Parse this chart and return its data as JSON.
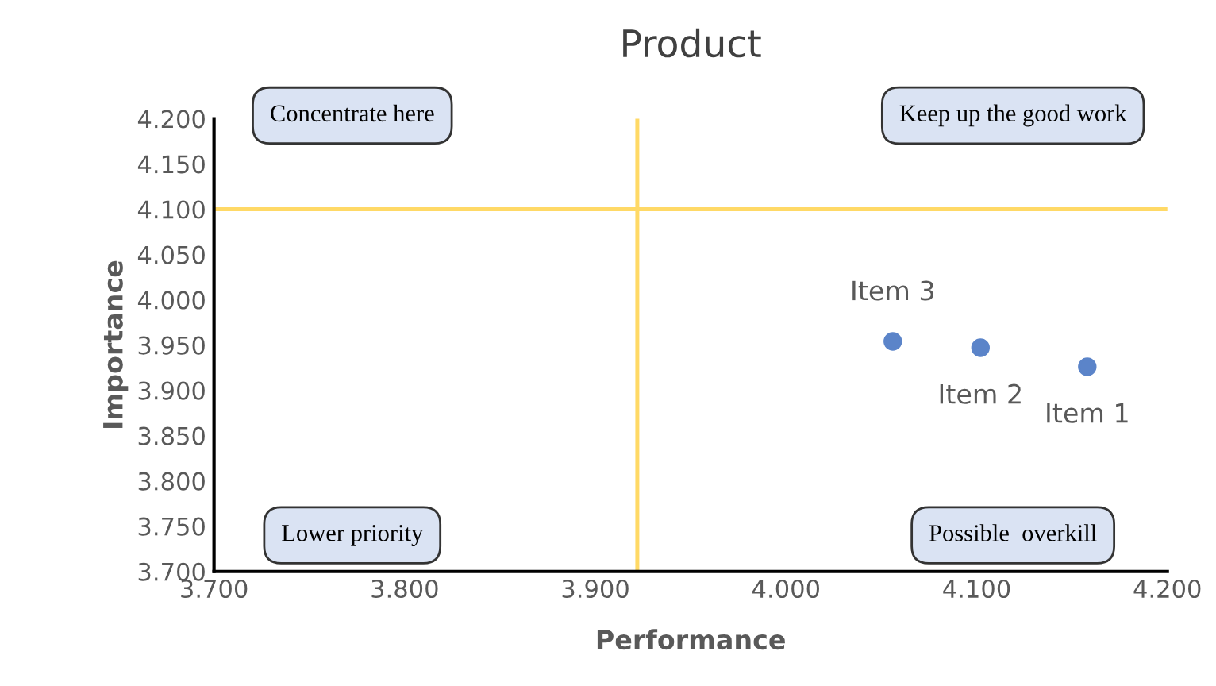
{
  "chart_data": {
    "type": "scatter",
    "title": "Product",
    "xlabel": "Performance",
    "ylabel": "Importance",
    "x": [
      4.158,
      4.102,
      4.056
    ],
    "values": [
      3.926,
      3.947,
      3.954
    ],
    "color": "#5b84c9",
    "marker": "circle",
    "xlim": [
      3.7,
      4.2
    ],
    "ylim": [
      3.7,
      4.2
    ],
    "xticks": [
      {
        "value": 3.7,
        "label": "3.700"
      },
      {
        "value": 3.8,
        "label": "3.800"
      },
      {
        "value": 3.9,
        "label": "3.900"
      },
      {
        "value": 4.0,
        "label": "4.000"
      },
      {
        "value": 4.1,
        "label": "4.100"
      },
      {
        "value": 4.2,
        "label": "4.200"
      }
    ],
    "yticks": [
      {
        "value": 3.7,
        "label": "3.700"
      },
      {
        "value": 3.75,
        "label": "3.750"
      },
      {
        "value": 3.8,
        "label": "3.800"
      },
      {
        "value": 3.85,
        "label": "3.850"
      },
      {
        "value": 3.9,
        "label": "3.900"
      },
      {
        "value": 3.95,
        "label": "3.950"
      },
      {
        "value": 4.0,
        "label": "4.000"
      },
      {
        "value": 4.05,
        "label": "4.050"
      },
      {
        "value": 4.1,
        "label": "4.100"
      },
      {
        "value": 4.15,
        "label": "4.150"
      },
      {
        "value": 4.2,
        "label": "4.200"
      }
    ],
    "grid": false,
    "legend": false,
    "ref_lines": [
      {
        "axis": "x",
        "value": 3.922,
        "color": "#ffd966"
      },
      {
        "axis": "y",
        "value": 4.1,
        "color": "#ffd966"
      }
    ],
    "annotations": [
      {
        "text": "Item 1",
        "x": 4.158,
        "y": 3.926
      },
      {
        "text": "Item 2",
        "x": 4.102,
        "y": 3.947
      },
      {
        "text": "Item 3",
        "x": 4.056,
        "y": 3.954
      },
      "Concentrate here",
      "Keep up the good work",
      "Lower priority",
      "Possible  overkill"
    ]
  }
}
